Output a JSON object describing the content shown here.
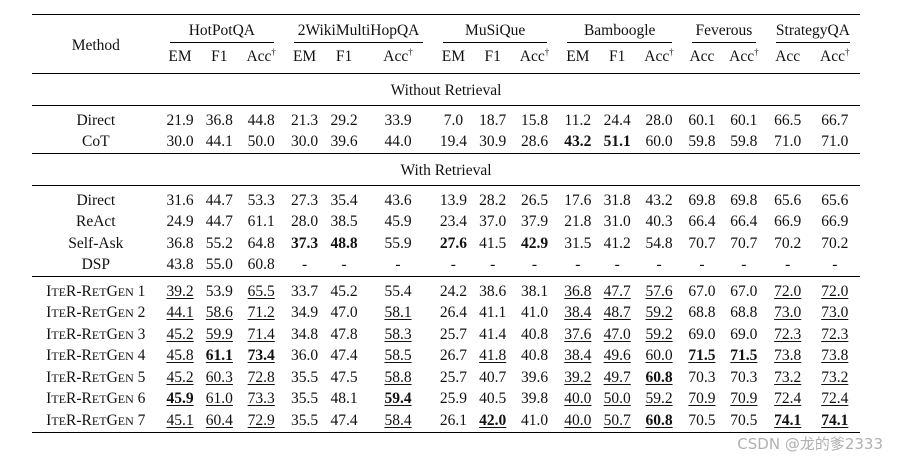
{
  "header": {
    "method_label": "Method",
    "datasets": [
      {
        "name": "HotPotQA",
        "cols": [
          "EM",
          "F1",
          "Acc"
        ]
      },
      {
        "name": "2WikiMultiHopQA",
        "cols": [
          "EM",
          "F1",
          "Acc"
        ]
      },
      {
        "name": "MuSiQue",
        "cols": [
          "EM",
          "F1",
          "Acc"
        ]
      },
      {
        "name": "Bamboogle",
        "cols": [
          "EM",
          "F1",
          "Acc"
        ]
      },
      {
        "name": "Feverous",
        "cols": [
          "Acc",
          "Acc"
        ]
      },
      {
        "name": "StrategyQA",
        "cols": [
          "Acc",
          "Acc"
        ]
      }
    ],
    "dagger": "†"
  },
  "sections": [
    {
      "title": "Without Retrieval",
      "rows": [
        {
          "method": "Direct",
          "cells": [
            {
              "v": "21.9"
            },
            {
              "v": "36.8"
            },
            {
              "v": "44.8"
            },
            {
              "v": "21.3"
            },
            {
              "v": "29.2"
            },
            {
              "v": "33.9"
            },
            {
              "v": "7.0"
            },
            {
              "v": "18.7"
            },
            {
              "v": "15.8"
            },
            {
              "v": "11.2"
            },
            {
              "v": "24.4"
            },
            {
              "v": "28.0"
            },
            {
              "v": "60.1"
            },
            {
              "v": "60.1"
            },
            {
              "v": "66.5"
            },
            {
              "v": "66.7"
            }
          ]
        },
        {
          "method": "CoT",
          "cells": [
            {
              "v": "30.0"
            },
            {
              "v": "44.1"
            },
            {
              "v": "50.0"
            },
            {
              "v": "30.0"
            },
            {
              "v": "39.6"
            },
            {
              "v": "44.0"
            },
            {
              "v": "19.4"
            },
            {
              "v": "30.9"
            },
            {
              "v": "28.6"
            },
            {
              "v": "43.2",
              "b": true
            },
            {
              "v": "51.1",
              "b": true
            },
            {
              "v": "60.0"
            },
            {
              "v": "59.8"
            },
            {
              "v": "59.8"
            },
            {
              "v": "71.0"
            },
            {
              "v": "71.0"
            }
          ]
        }
      ]
    },
    {
      "title": "With Retrieval",
      "rows": [
        {
          "method": "Direct",
          "cells": [
            {
              "v": "31.6"
            },
            {
              "v": "44.7"
            },
            {
              "v": "53.3"
            },
            {
              "v": "27.3"
            },
            {
              "v": "35.4"
            },
            {
              "v": "43.6"
            },
            {
              "v": "13.9"
            },
            {
              "v": "28.2"
            },
            {
              "v": "26.5"
            },
            {
              "v": "17.6"
            },
            {
              "v": "31.8"
            },
            {
              "v": "43.2"
            },
            {
              "v": "69.8"
            },
            {
              "v": "69.8"
            },
            {
              "v": "65.6"
            },
            {
              "v": "65.6"
            }
          ]
        },
        {
          "method": "ReAct",
          "cells": [
            {
              "v": "24.9"
            },
            {
              "v": "44.7"
            },
            {
              "v": "61.1"
            },
            {
              "v": "28.0"
            },
            {
              "v": "38.5"
            },
            {
              "v": "45.9"
            },
            {
              "v": "23.4"
            },
            {
              "v": "37.0"
            },
            {
              "v": "37.9"
            },
            {
              "v": "21.8"
            },
            {
              "v": "31.0"
            },
            {
              "v": "40.3"
            },
            {
              "v": "66.4"
            },
            {
              "v": "66.4"
            },
            {
              "v": "66.9"
            },
            {
              "v": "66.9"
            }
          ]
        },
        {
          "method": "Self-Ask",
          "cells": [
            {
              "v": "36.8"
            },
            {
              "v": "55.2"
            },
            {
              "v": "64.8"
            },
            {
              "v": "37.3",
              "b": true
            },
            {
              "v": "48.8",
              "b": true
            },
            {
              "v": "55.9"
            },
            {
              "v": "27.6",
              "b": true
            },
            {
              "v": "41.5"
            },
            {
              "v": "42.9",
              "b": true
            },
            {
              "v": "31.5"
            },
            {
              "v": "41.2"
            },
            {
              "v": "54.8"
            },
            {
              "v": "70.7"
            },
            {
              "v": "70.7"
            },
            {
              "v": "70.2"
            },
            {
              "v": "70.2"
            }
          ]
        },
        {
          "method": "DSP",
          "cells": [
            {
              "v": "43.8"
            },
            {
              "v": "55.0"
            },
            {
              "v": "60.8"
            },
            {
              "v": "-"
            },
            {
              "v": "-"
            },
            {
              "v": "-"
            },
            {
              "v": "-"
            },
            {
              "v": "-"
            },
            {
              "v": "-"
            },
            {
              "v": "-"
            },
            {
              "v": "-"
            },
            {
              "v": "-"
            },
            {
              "v": "-"
            },
            {
              "v": "-"
            },
            {
              "v": "-"
            },
            {
              "v": "-"
            }
          ]
        }
      ]
    },
    {
      "title": "",
      "rows": [
        {
          "method": "ITER-RETGEN 1",
          "sc": true,
          "cells": [
            {
              "v": "39.2",
              "u": true
            },
            {
              "v": "53.9"
            },
            {
              "v": "65.5",
              "u": true
            },
            {
              "v": "33.7"
            },
            {
              "v": "45.2"
            },
            {
              "v": "55.4"
            },
            {
              "v": "24.2"
            },
            {
              "v": "38.6"
            },
            {
              "v": "38.1"
            },
            {
              "v": "36.8",
              "u": true
            },
            {
              "v": "47.7",
              "u": true
            },
            {
              "v": "57.6",
              "u": true
            },
            {
              "v": "67.0"
            },
            {
              "v": "67.0"
            },
            {
              "v": "72.0",
              "u": true
            },
            {
              "v": "72.0",
              "u": true
            }
          ]
        },
        {
          "method": "ITER-RETGEN 2",
          "sc": true,
          "cells": [
            {
              "v": "44.1",
              "u": true
            },
            {
              "v": "58.6",
              "u": true
            },
            {
              "v": "71.2",
              "u": true
            },
            {
              "v": "34.9"
            },
            {
              "v": "47.0"
            },
            {
              "v": "58.1",
              "u": true
            },
            {
              "v": "26.4"
            },
            {
              "v": "41.1"
            },
            {
              "v": "41.0"
            },
            {
              "v": "38.4",
              "u": true
            },
            {
              "v": "48.7",
              "u": true
            },
            {
              "v": "59.2",
              "u": true
            },
            {
              "v": "68.8"
            },
            {
              "v": "68.8"
            },
            {
              "v": "73.0",
              "u": true
            },
            {
              "v": "73.0",
              "u": true
            }
          ]
        },
        {
          "method": "ITER-RETGEN 3",
          "sc": true,
          "cells": [
            {
              "v": "45.2",
              "u": true
            },
            {
              "v": "59.9",
              "u": true
            },
            {
              "v": "71.4",
              "u": true
            },
            {
              "v": "34.8"
            },
            {
              "v": "47.8"
            },
            {
              "v": "58.3",
              "u": true
            },
            {
              "v": "25.7"
            },
            {
              "v": "41.4"
            },
            {
              "v": "40.8"
            },
            {
              "v": "37.6",
              "u": true
            },
            {
              "v": "47.0",
              "u": true
            },
            {
              "v": "59.2",
              "u": true
            },
            {
              "v": "69.0"
            },
            {
              "v": "69.0"
            },
            {
              "v": "72.3",
              "u": true
            },
            {
              "v": "72.3",
              "u": true
            }
          ]
        },
        {
          "method": "ITER-RETGEN 4",
          "sc": true,
          "cells": [
            {
              "v": "45.8",
              "u": true
            },
            {
              "v": "61.1",
              "u": true,
              "b": true
            },
            {
              "v": "73.4",
              "u": true,
              "b": true
            },
            {
              "v": "36.0"
            },
            {
              "v": "47.4"
            },
            {
              "v": "58.5",
              "u": true
            },
            {
              "v": "26.7"
            },
            {
              "v": "41.8",
              "u": true
            },
            {
              "v": "40.8"
            },
            {
              "v": "38.4",
              "u": true
            },
            {
              "v": "49.6",
              "u": true
            },
            {
              "v": "60.0",
              "u": true
            },
            {
              "v": "71.5",
              "u": true,
              "b": true
            },
            {
              "v": "71.5",
              "u": true,
              "b": true
            },
            {
              "v": "73.8",
              "u": true
            },
            {
              "v": "73.8",
              "u": true
            }
          ]
        },
        {
          "method": "ITER-RETGEN 5",
          "sc": true,
          "cells": [
            {
              "v": "45.2",
              "u": true
            },
            {
              "v": "60.3",
              "u": true
            },
            {
              "v": "72.8",
              "u": true
            },
            {
              "v": "35.5"
            },
            {
              "v": "47.5"
            },
            {
              "v": "58.8",
              "u": true
            },
            {
              "v": "25.7"
            },
            {
              "v": "40.7"
            },
            {
              "v": "39.6"
            },
            {
              "v": "39.2",
              "u": true
            },
            {
              "v": "49.7",
              "u": true
            },
            {
              "v": "60.8",
              "u": true,
              "b": true
            },
            {
              "v": "70.3"
            },
            {
              "v": "70.3"
            },
            {
              "v": "73.2",
              "u": true
            },
            {
              "v": "73.2",
              "u": true
            }
          ]
        },
        {
          "method": "ITER-RETGEN 6",
          "sc": true,
          "cells": [
            {
              "v": "45.9",
              "u": true,
              "b": true
            },
            {
              "v": "61.0",
              "u": true
            },
            {
              "v": "73.3",
              "u": true
            },
            {
              "v": "35.5"
            },
            {
              "v": "48.1"
            },
            {
              "v": "59.4",
              "u": true,
              "b": true
            },
            {
              "v": "25.9"
            },
            {
              "v": "40.5"
            },
            {
              "v": "39.8"
            },
            {
              "v": "40.0",
              "u": true
            },
            {
              "v": "50.0",
              "u": true
            },
            {
              "v": "59.2",
              "u": true
            },
            {
              "v": "70.9",
              "u": true
            },
            {
              "v": "70.9",
              "u": true
            },
            {
              "v": "72.4",
              "u": true
            },
            {
              "v": "72.4",
              "u": true
            }
          ]
        },
        {
          "method": "ITER-RETGEN 7",
          "sc": true,
          "cells": [
            {
              "v": "45.1",
              "u": true
            },
            {
              "v": "60.4",
              "u": true
            },
            {
              "v": "72.9",
              "u": true
            },
            {
              "v": "35.5"
            },
            {
              "v": "47.4"
            },
            {
              "v": "58.4",
              "u": true
            },
            {
              "v": "26.1"
            },
            {
              "v": "42.0",
              "u": true,
              "b": true
            },
            {
              "v": "41.0"
            },
            {
              "v": "40.0",
              "u": true
            },
            {
              "v": "50.7",
              "u": true
            },
            {
              "v": "60.8",
              "u": true,
              "b": true
            },
            {
              "v": "70.5"
            },
            {
              "v": "70.5"
            },
            {
              "v": "74.1",
              "u": true,
              "b": true
            },
            {
              "v": "74.1",
              "u": true,
              "b": true
            }
          ]
        }
      ]
    }
  ],
  "watermark": "CSDN @龙的爹2333"
}
